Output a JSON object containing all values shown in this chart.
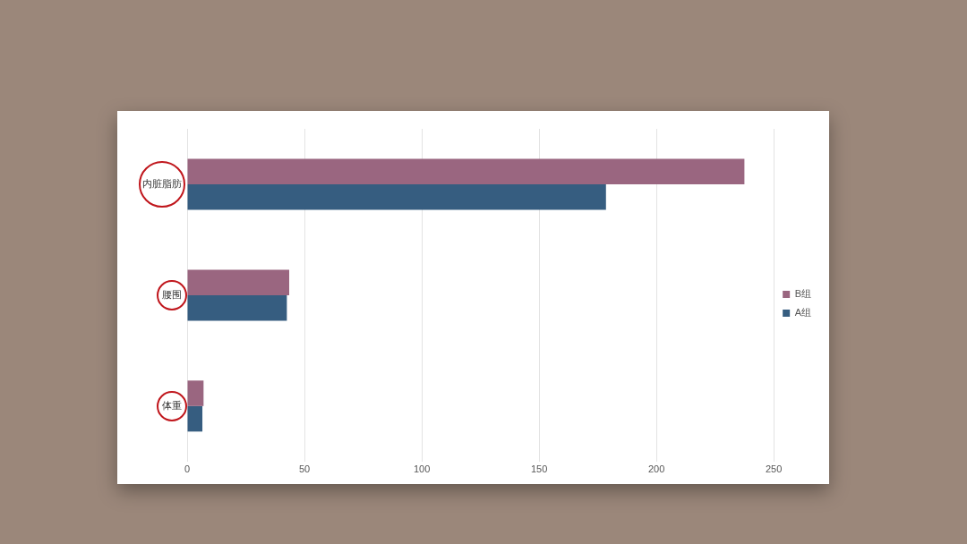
{
  "chart_data": {
    "type": "bar",
    "orientation": "horizontal",
    "categories": [
      "内脏脂肪",
      "腰围",
      "体重"
    ],
    "series": [
      {
        "name": "B组",
        "color": "#9a6680",
        "values": [
          237.5,
          43.5,
          7
        ]
      },
      {
        "name": "A组",
        "color": "#365d80",
        "values": [
          178.5,
          42.5,
          6.5
        ]
      }
    ],
    "xlim": [
      0,
      250
    ],
    "xticks": [
      0,
      50,
      100,
      150,
      200,
      250
    ],
    "grid": "x",
    "legend": "right"
  }
}
